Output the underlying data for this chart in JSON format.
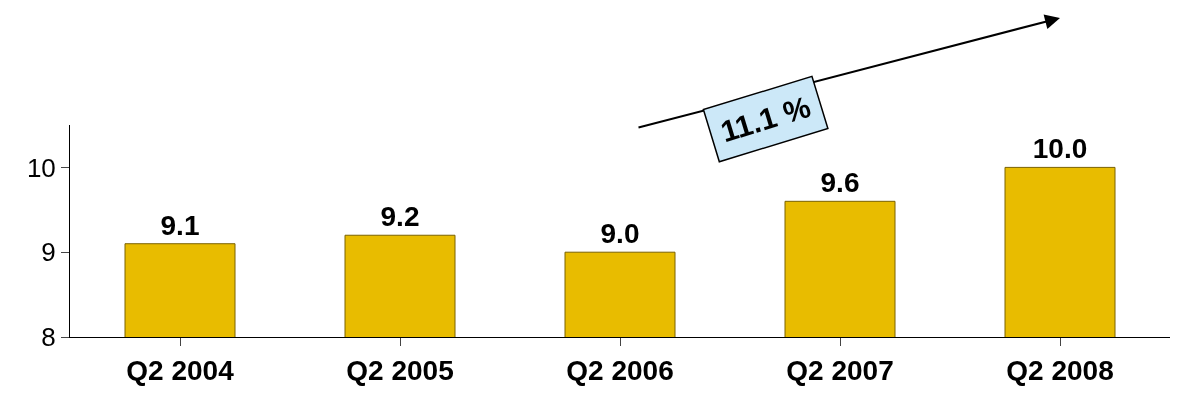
{
  "chart_data": {
    "type": "bar",
    "categories": [
      "Q2 2004",
      "Q2 2005",
      "Q2 2006",
      "Q2 2007",
      "Q2 2008"
    ],
    "values": [
      9.1,
      9.2,
      9.0,
      9.6,
      10.0
    ],
    "color": "#e8bc00",
    "ylim": [
      8,
      10.5
    ],
    "yticks": [
      8,
      9,
      10
    ],
    "value_labels": [
      "9.1",
      "9.2",
      "9.0",
      "9.6",
      "10.0"
    ],
    "annotations": [
      "11.1 %"
    ]
  }
}
